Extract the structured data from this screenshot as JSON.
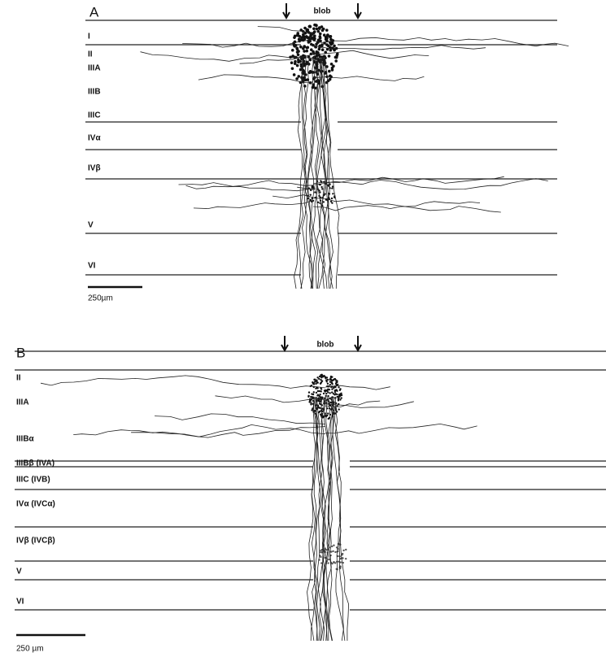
{
  "panels": [
    {
      "label": "A",
      "blob_label": "blob",
      "layers": [
        "I",
        "II",
        "IIIA",
        "IIIB",
        "IIIC",
        "IVα",
        "IVβ",
        "V",
        "VI"
      ],
      "scale_bar": "250µm"
    },
    {
      "label": "B",
      "blob_label": "blob",
      "layers": [
        "II",
        "IIIA",
        "IIIBα",
        "IIIBβ (IVA)",
        "IIIC (IVB)",
        "IVα (IVCα)",
        "IVβ (IVCβ)",
        "V",
        "VI"
      ],
      "scale_bar": "250 µm"
    }
  ]
}
